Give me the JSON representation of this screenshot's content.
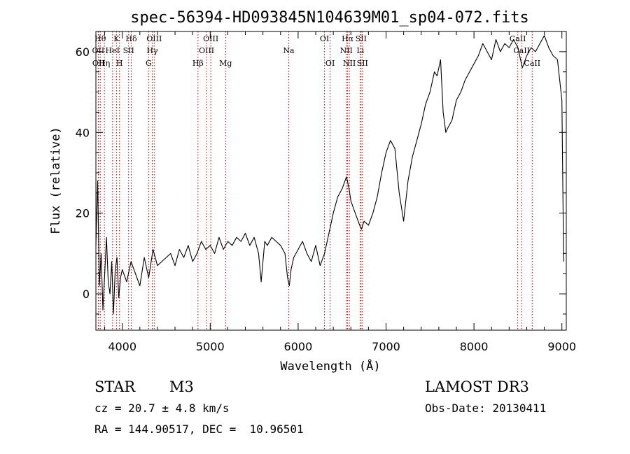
{
  "chart_data": {
    "type": "line",
    "title": "spec-56394-HD093845N104639M01_sp04-072.fits",
    "xlabel": "Wavelength (Å)",
    "ylabel": "Flux (relative)",
    "xlim": [
      3700,
      9050
    ],
    "ylim": [
      -9,
      65
    ],
    "x_ticks": [
      4000,
      5000,
      6000,
      7000,
      8000,
      9000
    ],
    "y_ticks": [
      0,
      20,
      40,
      60
    ],
    "grid": false,
    "series": [
      {
        "x": [
          3700,
          3720,
          3740,
          3760,
          3780,
          3800,
          3820,
          3840,
          3860,
          3880,
          3900,
          3920,
          3940,
          3960,
          3980,
          4000,
          4050,
          4100,
          4150,
          4200,
          4250,
          4300,
          4350,
          4400,
          4450,
          4500,
          4550,
          4600,
          4650,
          4700,
          4750,
          4800,
          4850,
          4900,
          4950,
          5000,
          5050,
          5100,
          5150,
          5200,
          5250,
          5300,
          5350,
          5400,
          5450,
          5500,
          5550,
          5580,
          5620,
          5650,
          5700,
          5750,
          5800,
          5850,
          5880,
          5900,
          5920,
          5950,
          6000,
          6050,
          6100,
          6150,
          6200,
          6250,
          6300,
          6350,
          6400,
          6450,
          6500,
          6550,
          6580,
          6600,
          6650,
          6700,
          6720,
          6750,
          6800,
          6850,
          6900,
          6950,
          7000,
          7050,
          7100,
          7150,
          7200,
          7250,
          7300,
          7350,
          7400,
          7450,
          7500,
          7550,
          7580,
          7600,
          7620,
          7650,
          7680,
          7700,
          7750,
          7800,
          7850,
          7900,
          7950,
          8000,
          8050,
          8100,
          8150,
          8200,
          8250,
          8300,
          8350,
          8400,
          8450,
          8500,
          8550,
          8600,
          8650,
          8700,
          8750,
          8800,
          8850,
          8900,
          8950,
          9000,
          9020
        ],
        "y": [
          12,
          28,
          2,
          10,
          -4,
          5,
          14,
          3,
          0,
          8,
          -5,
          6,
          9,
          -1,
          4,
          6,
          3,
          8,
          5,
          2,
          9,
          4,
          11,
          7,
          8,
          9,
          10,
          7,
          11,
          9,
          12,
          8,
          10,
          13,
          11,
          12,
          10,
          14,
          11,
          13,
          12,
          14,
          13,
          15,
          12,
          14,
          10,
          3,
          13,
          12,
          14,
          13,
          12,
          10,
          4,
          2,
          6,
          9,
          11,
          13,
          10,
          8,
          12,
          7,
          10,
          15,
          20,
          24,
          26,
          29,
          26,
          23,
          20,
          17,
          16,
          18,
          17,
          20,
          24,
          30,
          35,
          38,
          36,
          25,
          18,
          28,
          34,
          38,
          42,
          47,
          50,
          55,
          54,
          56,
          58,
          45,
          40,
          41,
          43,
          48,
          50,
          53,
          55,
          57,
          59,
          62,
          60,
          58,
          63,
          60,
          62,
          61,
          63,
          61,
          56,
          59,
          61,
          60,
          62,
          64,
          61,
          59,
          58,
          48,
          8
        ]
      }
    ],
    "lines": [
      {
        "x": 3750,
        "label": "Hθ",
        "row": 1
      },
      {
        "x": 3727,
        "label": "OII",
        "row": 2
      },
      {
        "x": 3730,
        "label": "OII",
        "row": 3
      },
      {
        "x": 3797,
        "label": "Hη",
        "row": 3
      },
      {
        "x": 3889,
        "label": "HeI",
        "row": 2
      },
      {
        "x": 3934,
        "label": "K",
        "row": 1
      },
      {
        "x": 3968,
        "label": "H",
        "row": 3
      },
      {
        "x": 4072,
        "label": "SII",
        "row": 2
      },
      {
        "x": 4102,
        "label": "Hδ",
        "row": 1
      },
      {
        "x": 4300,
        "label": "G",
        "row": 3
      },
      {
        "x": 4341,
        "label": "Hγ",
        "row": 2
      },
      {
        "x": 4363,
        "label": "OIII",
        "row": 1
      },
      {
        "x": 4861,
        "label": "Hβ",
        "row": 3
      },
      {
        "x": 4959,
        "label": "OIII",
        "row": 2
      },
      {
        "x": 5007,
        "label": "OIII",
        "row": 1
      },
      {
        "x": 5175,
        "label": "Mg",
        "row": 3
      },
      {
        "x": 5893,
        "label": "Na",
        "row": 2
      },
      {
        "x": 6300,
        "label": "OI",
        "row": 1
      },
      {
        "x": 6364,
        "label": "OI",
        "row": 3
      },
      {
        "x": 6548,
        "label": "NII",
        "row": 2
      },
      {
        "x": 6563,
        "label": "Hα",
        "row": 1
      },
      {
        "x": 6583,
        "label": "NII",
        "row": 3
      },
      {
        "x": 6708,
        "label": "Li",
        "row": 2
      },
      {
        "x": 6716,
        "label": "SII",
        "row": 1
      },
      {
        "x": 6731,
        "label": "SII",
        "row": 3
      },
      {
        "x": 8498,
        "label": "CaII",
        "row": 1
      },
      {
        "x": 8542,
        "label": "CaII",
        "row": 2
      },
      {
        "x": 8662,
        "label": "CaII",
        "row": 3
      }
    ]
  },
  "footer": {
    "class_label": "STAR",
    "subclass": "M3",
    "survey": "LAMOST DR3",
    "cz": "cz = 20.7 ± 4.8 km/s",
    "obs_date": "Obs-Date: 20130411",
    "coords": "RA = 144.90517, DEC =  10.96501"
  }
}
